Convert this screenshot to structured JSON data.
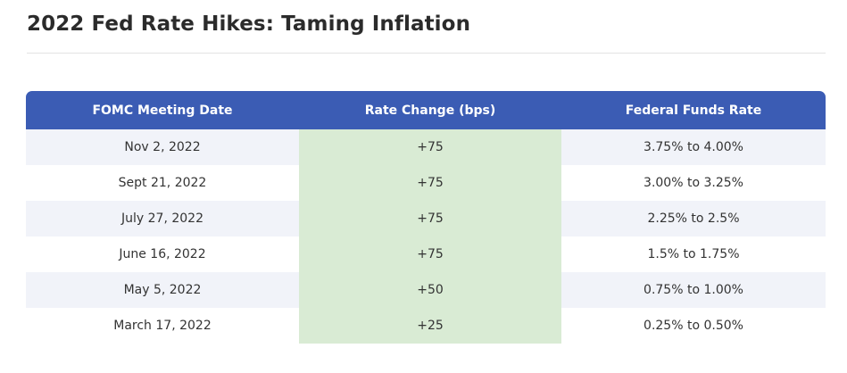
{
  "page": {
    "title": "2022 Fed Rate Hikes: Taming Inflation"
  },
  "table": {
    "headers": [
      "FOMC Meeting Date",
      "Rate Change (bps)",
      "Federal Funds Rate"
    ],
    "rows": [
      [
        "Nov 2, 2022",
        "+75",
        "3.75% to 4.00%"
      ],
      [
        "Sept 21, 2022",
        "+75",
        "3.00% to 3.25%"
      ],
      [
        "July 27, 2022",
        "+75",
        "2.25% to 2.5%"
      ],
      [
        "June 16, 2022",
        "+75",
        "1.5% to 1.75%"
      ],
      [
        "May 5, 2022",
        "+50",
        "0.75% to 1.00%"
      ],
      [
        "March 17, 2022",
        "+25",
        "0.25% to 0.50%"
      ]
    ]
  },
  "colors": {
    "header_background": "#3b5cb4",
    "header_text": "#ffffff",
    "row_stripe": "#f1f3f9",
    "rate_change_highlight": "#d9ebd4"
  }
}
